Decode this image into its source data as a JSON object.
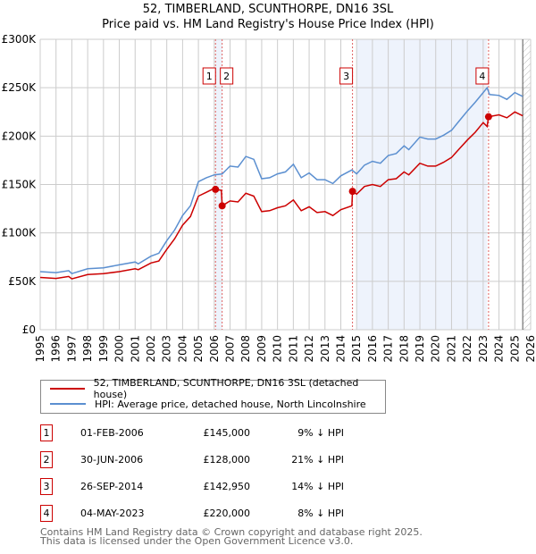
{
  "title": "52, TIMBERLAND, SCUNTHORPE, DN16 3SL",
  "subtitle": "Price paid vs. HM Land Registry's House Price Index (HPI)",
  "colors": {
    "price": "#cc0000",
    "hpi": "#5b8fd0",
    "shade": "#eef3fc"
  },
  "legend": {
    "price": "52, TIMBERLAND, SCUNTHORPE, DN16 3SL (detached house)",
    "hpi": "HPI: Average price, detached house, North Lincolnshire"
  },
  "sales": [
    {
      "n": "1",
      "date": "01-FEB-2006",
      "price": "£145,000",
      "hpi": "9% ↓ HPI",
      "x": 2006.08,
      "y": 145
    },
    {
      "n": "2",
      "date": "30-JUN-2006",
      "price": "£128,000",
      "hpi": "21% ↓ HPI",
      "x": 2006.5,
      "y": 128
    },
    {
      "n": "3",
      "date": "26-SEP-2014",
      "price": "£142,950",
      "hpi": "14% ↓ HPI",
      "x": 2014.74,
      "y": 142.95
    },
    {
      "n": "4",
      "date": "04-MAY-2023",
      "price": "£220,000",
      "hpi": "8% ↓ HPI",
      "x": 2023.34,
      "y": 220
    }
  ],
  "footer": [
    "Contains HM Land Registry data © Crown copyright and database right 2025.",
    "This data is licensed under the Open Government Licence v3.0."
  ],
  "chart_data": {
    "type": "line",
    "xlim": [
      1995,
      2026
    ],
    "ylim": [
      0,
      300
    ],
    "yticks": [
      0,
      50,
      100,
      150,
      200,
      250,
      300
    ],
    "ytick_labels": [
      "£0",
      "£50K",
      "£100K",
      "£150K",
      "£200K",
      "£250K",
      "£300K"
    ],
    "xticks": [
      1995,
      1996,
      1997,
      1998,
      1999,
      2000,
      2001,
      2002,
      2003,
      2004,
      2005,
      2006,
      2007,
      2008,
      2009,
      2010,
      2011,
      2012,
      2013,
      2014,
      2015,
      2016,
      2017,
      2018,
      2019,
      2020,
      2021,
      2022,
      2023,
      2024,
      2025,
      2026
    ],
    "shaded": [
      [
        2006.08,
        2006.5
      ],
      [
        2015,
        2023.25
      ]
    ],
    "hatched_from": 2025.5,
    "series": [
      {
        "name": "price",
        "x": [
          1995,
          1996,
          1996.8,
          1997,
          1998,
          1999,
          2000,
          2001,
          2001.2,
          2002,
          2002.5,
          2003,
          2003.5,
          2004,
          2004.5,
          2005,
          2005.5,
          2006,
          2006.08,
          2006.45,
          2006.5,
          2007,
          2007.5,
          2008,
          2008.5,
          2009,
          2009.5,
          2010,
          2010.5,
          2011,
          2011.5,
          2012,
          2012.5,
          2013,
          2013.5,
          2014,
          2014.7,
          2014.74,
          2015,
          2015.5,
          2016,
          2016.5,
          2017,
          2017.5,
          2018,
          2018.3,
          2019,
          2019.5,
          2020,
          2020.5,
          2021,
          2021.5,
          2022,
          2022.5,
          2023,
          2023.25,
          2023.34,
          2024,
          2024.5,
          2025,
          2025.5
        ],
        "values": [
          54,
          53,
          55,
          52.5,
          57,
          58,
          60,
          63,
          62,
          69,
          71,
          83,
          94,
          108,
          117,
          138,
          142,
          146,
          145,
          144,
          128,
          133,
          132,
          141,
          138,
          122,
          123,
          126,
          128,
          134,
          123,
          127,
          121,
          122,
          118,
          124,
          128,
          142.95,
          140,
          148,
          150,
          148,
          155,
          156,
          163,
          160,
          172,
          169,
          169,
          173,
          178,
          187,
          196,
          204,
          214,
          210,
          220,
          222,
          219,
          225,
          221
        ]
      },
      {
        "name": "hpi",
        "x": [
          1995,
          1996,
          1996.8,
          1997,
          1998,
          1999,
          2000,
          2001,
          2001.2,
          2002,
          2002.5,
          2003,
          2003.5,
          2004,
          2004.5,
          2005,
          2005.5,
          2006,
          2006.5,
          2007,
          2007.5,
          2008,
          2008.5,
          2009,
          2009.5,
          2010,
          2010.5,
          2011,
          2011.5,
          2012,
          2012.5,
          2013,
          2013.5,
          2014,
          2014.7,
          2015,
          2015.5,
          2016,
          2016.5,
          2017,
          2017.5,
          2018,
          2018.3,
          2019,
          2019.5,
          2020,
          2020.5,
          2021,
          2021.5,
          2022,
          2022.5,
          2023,
          2023.25,
          2023.4,
          2024,
          2024.5,
          2025,
          2025.5
        ],
        "values": [
          60,
          59,
          61,
          58,
          63,
          64,
          67,
          70,
          68,
          76,
          79,
          92,
          103,
          118,
          128,
          153,
          157,
          160,
          161,
          169,
          168,
          179,
          176,
          156,
          157,
          161,
          163,
          171,
          157,
          162,
          155,
          155,
          151,
          159,
          165,
          161,
          170,
          174,
          172,
          180,
          182,
          190,
          186,
          199,
          197,
          197,
          201,
          206,
          216,
          226,
          235,
          245,
          250,
          243,
          242,
          238,
          245,
          241
        ]
      }
    ]
  }
}
